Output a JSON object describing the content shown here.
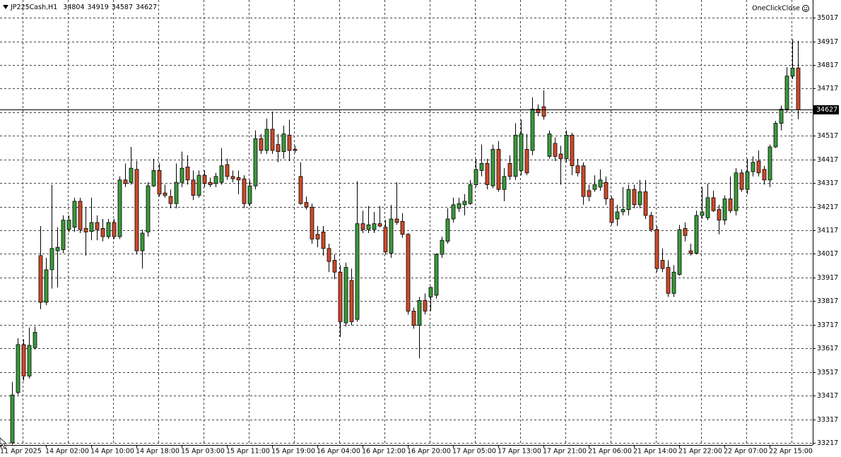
{
  "chart_data": {
    "type": "candlestick",
    "symbol": "JP225Cash,H1",
    "plugin_label": "OneClickClose",
    "categories": [
      "11 Apr 2025",
      null,
      null,
      null,
      null,
      null,
      null,
      null,
      "14 Apr 02:00",
      null,
      null,
      null,
      null,
      null,
      null,
      null,
      "14 Apr 10:00",
      null,
      null,
      null,
      null,
      null,
      null,
      null,
      "14 Apr 18:00",
      null,
      null,
      null,
      null,
      null,
      null,
      null,
      "15 Apr 03:00",
      null,
      null,
      null,
      null,
      null,
      null,
      null,
      "15 Apr 11:00",
      null,
      null,
      null,
      null,
      null,
      null,
      null,
      "15 Apr 19:00",
      null,
      null,
      null,
      null,
      null,
      null,
      null,
      "16 Apr 04:00",
      null,
      null,
      null,
      null,
      null,
      null,
      null,
      "16 Apr 12:00",
      null,
      null,
      null,
      null,
      null,
      null,
      null,
      "16 Apr 20:00",
      null,
      null,
      null,
      null,
      null,
      null,
      null,
      "17 Apr 05:00",
      null,
      null,
      null,
      null,
      null,
      null,
      null,
      "17 Apr 13:00",
      null,
      null,
      null,
      null,
      null,
      null,
      null,
      "17 Apr 21:00",
      null,
      null,
      null,
      null,
      null,
      null,
      null,
      "21 Apr 06:00",
      null,
      null,
      null,
      null,
      null,
      null,
      null,
      "21 Apr 14:00",
      null,
      null,
      null,
      null,
      null,
      null,
      null,
      "21 Apr 22:00",
      null,
      null,
      null,
      null,
      null,
      null,
      null,
      "22 Apr 07:00",
      null,
      null,
      null,
      null,
      null,
      null,
      null,
      "22 Apr 15:00",
      null,
      null,
      null,
      null,
      null
    ],
    "open": [
      null,
      null,
      33217,
      33430,
      33633,
      33500,
      33620,
      34010,
      33812,
      33950,
      34030,
      34035,
      34120,
      34130,
      34240,
      34125,
      34112,
      34150,
      34125,
      34090,
      34150,
      34090,
      34330,
      34320,
      34375,
      34030,
      34110,
      34305,
      34370,
      34275,
      34260,
      34230,
      34320,
      34385,
      34330,
      34265,
      34350,
      34320,
      34315,
      34320,
      34395,
      34345,
      34340,
      34335,
      34230,
      34305,
      34505,
      34455,
      34545,
      34480,
      34450,
      34520,
      34460,
      34345,
      34235,
      34215,
      34100,
      34110,
      34040,
      33990,
      33940,
      33725,
      33905,
      33740,
      34145,
      34120,
      34120,
      34145,
      34130,
      34020,
      34165,
      34155,
      34100,
      33775,
      33715,
      33820,
      33835,
      33842,
      34015,
      34070,
      34165,
      34210,
      34225,
      34230,
      34310,
      34370,
      34400,
      34305,
      34460,
      34290,
      34400,
      34345,
      34370,
      34460,
      34455,
      34630,
      34640,
      34430,
      34485,
      34440,
      34420,
      34520,
      34390,
      34390,
      34285,
      34290,
      34300,
      34320,
      34250,
      34165,
      34195,
      34205,
      34290,
      34225,
      34280,
      34180,
      34120,
      33990,
      33960,
      33850,
      33930,
      34125,
      34030,
      34020,
      34180,
      34170,
      34255,
      34205,
      34160,
      34250,
      34200,
      34360,
      34290,
      34365,
      34410,
      34375,
      34330,
      34470,
      34570,
      34630,
      34770,
      34804
    ],
    "high": [
      null,
      null,
      33475,
      33660,
      33655,
      33705,
      33710,
      34135,
      34000,
      34310,
      34130,
      34180,
      34180,
      34255,
      34255,
      34215,
      34255,
      34180,
      34165,
      34165,
      34165,
      34345,
      34400,
      34470,
      34410,
      34120,
      34320,
      34420,
      34400,
      34310,
      34290,
      34400,
      34450,
      34435,
      34370,
      34370,
      34370,
      34340,
      34360,
      34465,
      34420,
      34370,
      34370,
      34350,
      34330,
      34540,
      34525,
      34590,
      34620,
      34525,
      34560,
      34585,
      34475,
      34405,
      34260,
      34230,
      34135,
      34135,
      34060,
      34015,
      33970,
      33980,
      33955,
      34325,
      34200,
      34220,
      34195,
      34220,
      34160,
      34225,
      34320,
      34190,
      34105,
      33790,
      33835,
      33850,
      33880,
      34020,
      34090,
      34210,
      34255,
      34255,
      34270,
      34330,
      34420,
      34480,
      34420,
      34480,
      34495,
      34380,
      34435,
      34570,
      34585,
      34525,
      34680,
      34650,
      34710,
      34540,
      34510,
      34475,
      34540,
      34530,
      34420,
      34405,
      34310,
      34350,
      34375,
      34345,
      34260,
      34225,
      34300,
      34310,
      34310,
      34330,
      34330,
      34195,
      34135,
      34040,
      33990,
      33970,
      34140,
      34150,
      34060,
      34200,
      34300,
      34315,
      34285,
      34225,
      34265,
      34345,
      34380,
      34375,
      34420,
      34430,
      34455,
      34390,
      34480,
      34580,
      34645,
      34808,
      34925,
      34919
    ],
    "low": [
      null,
      null,
      33210,
      33420,
      33480,
      33490,
      33612,
      33783,
      33800,
      33870,
      33875,
      34020,
      34108,
      34110,
      34105,
      34010,
      34075,
      34075,
      34070,
      34080,
      34080,
      34080,
      34300,
      34310,
      34015,
      33955,
      34090,
      34300,
      34260,
      34255,
      34210,
      34210,
      34300,
      34310,
      34245,
      34255,
      34300,
      34300,
      34300,
      34310,
      34330,
      34320,
      34270,
      34210,
      34220,
      34290,
      34440,
      34440,
      34440,
      34405,
      34420,
      34410,
      34445,
      34225,
      34205,
      34060,
      34045,
      34010,
      33940,
      33910,
      33665,
      33710,
      33715,
      33730,
      34105,
      34105,
      34105,
      34130,
      34015,
      34000,
      34140,
      34085,
      33760,
      33700,
      33575,
      33760,
      33775,
      33827,
      34000,
      34060,
      34150,
      34195,
      34180,
      34225,
      34300,
      34345,
      34290,
      34295,
      34280,
      34240,
      34330,
      34330,
      34350,
      34350,
      34435,
      34600,
      34585,
      34420,
      34410,
      34310,
      34405,
      34350,
      34345,
      34225,
      34240,
      34280,
      34285,
      34225,
      34140,
      34135,
      34180,
      34180,
      34210,
      34210,
      34165,
      34110,
      33940,
      33940,
      33835,
      33835,
      33925,
      34070,
      34010,
      34015,
      34165,
      34160,
      34195,
      34100,
      34140,
      34190,
      34180,
      34280,
      34270,
      34345,
      34345,
      34310,
      34300,
      34465,
      34540,
      34615,
      34757,
      34587
    ],
    "close": [
      null,
      null,
      33420,
      33633,
      33500,
      33630,
      33685,
      33812,
      33950,
      34040,
      34045,
      34160,
      34160,
      34240,
      34120,
      34110,
      34150,
      34120,
      34090,
      34150,
      34090,
      34330,
      34315,
      34380,
      34030,
      34105,
      34305,
      34370,
      34270,
      34265,
      34230,
      34320,
      34380,
      34330,
      34265,
      34350,
      34315,
      34310,
      34345,
      34390,
      34345,
      34335,
      34330,
      34230,
      34305,
      34505,
      34455,
      34545,
      34455,
      34450,
      34525,
      34455,
      34455,
      34230,
      34215,
      34080,
      34080,
      34040,
      33985,
      33940,
      33730,
      33960,
      33730,
      34145,
      34120,
      34140,
      34145,
      34135,
      34025,
      34165,
      34150,
      34100,
      33775,
      33715,
      33820,
      33775,
      33875,
      34015,
      34075,
      34165,
      34225,
      34230,
      34240,
      34310,
      34375,
      34400,
      34310,
      34460,
      34290,
      34345,
      34345,
      34520,
      34525,
      34360,
      34630,
      34615,
      34600,
      34525,
      34430,
      34420,
      34520,
      34390,
      34360,
      34260,
      34260,
      34310,
      34330,
      34250,
      34150,
      34195,
      34205,
      34290,
      34225,
      34280,
      34180,
      34120,
      33955,
      33955,
      33850,
      33940,
      34120,
      34095,
      34020,
      34180,
      34195,
      34255,
      34200,
      34160,
      34250,
      34200,
      34360,
      34290,
      34365,
      34405,
      34360,
      34330,
      34470,
      34570,
      34630,
      34770,
      34804,
      34627
    ],
    "up_color": "#3a9a3a",
    "down_color": "#cd4a2a",
    "ylim": [
      33208,
      35092
    ],
    "yticks": [
      33217,
      33317,
      33417,
      33517,
      33617,
      33717,
      33817,
      33917,
      34017,
      34117,
      34217,
      34317,
      34417,
      34517,
      34617,
      34717,
      34817,
      34917,
      35017
    ],
    "grid": true
  }
}
